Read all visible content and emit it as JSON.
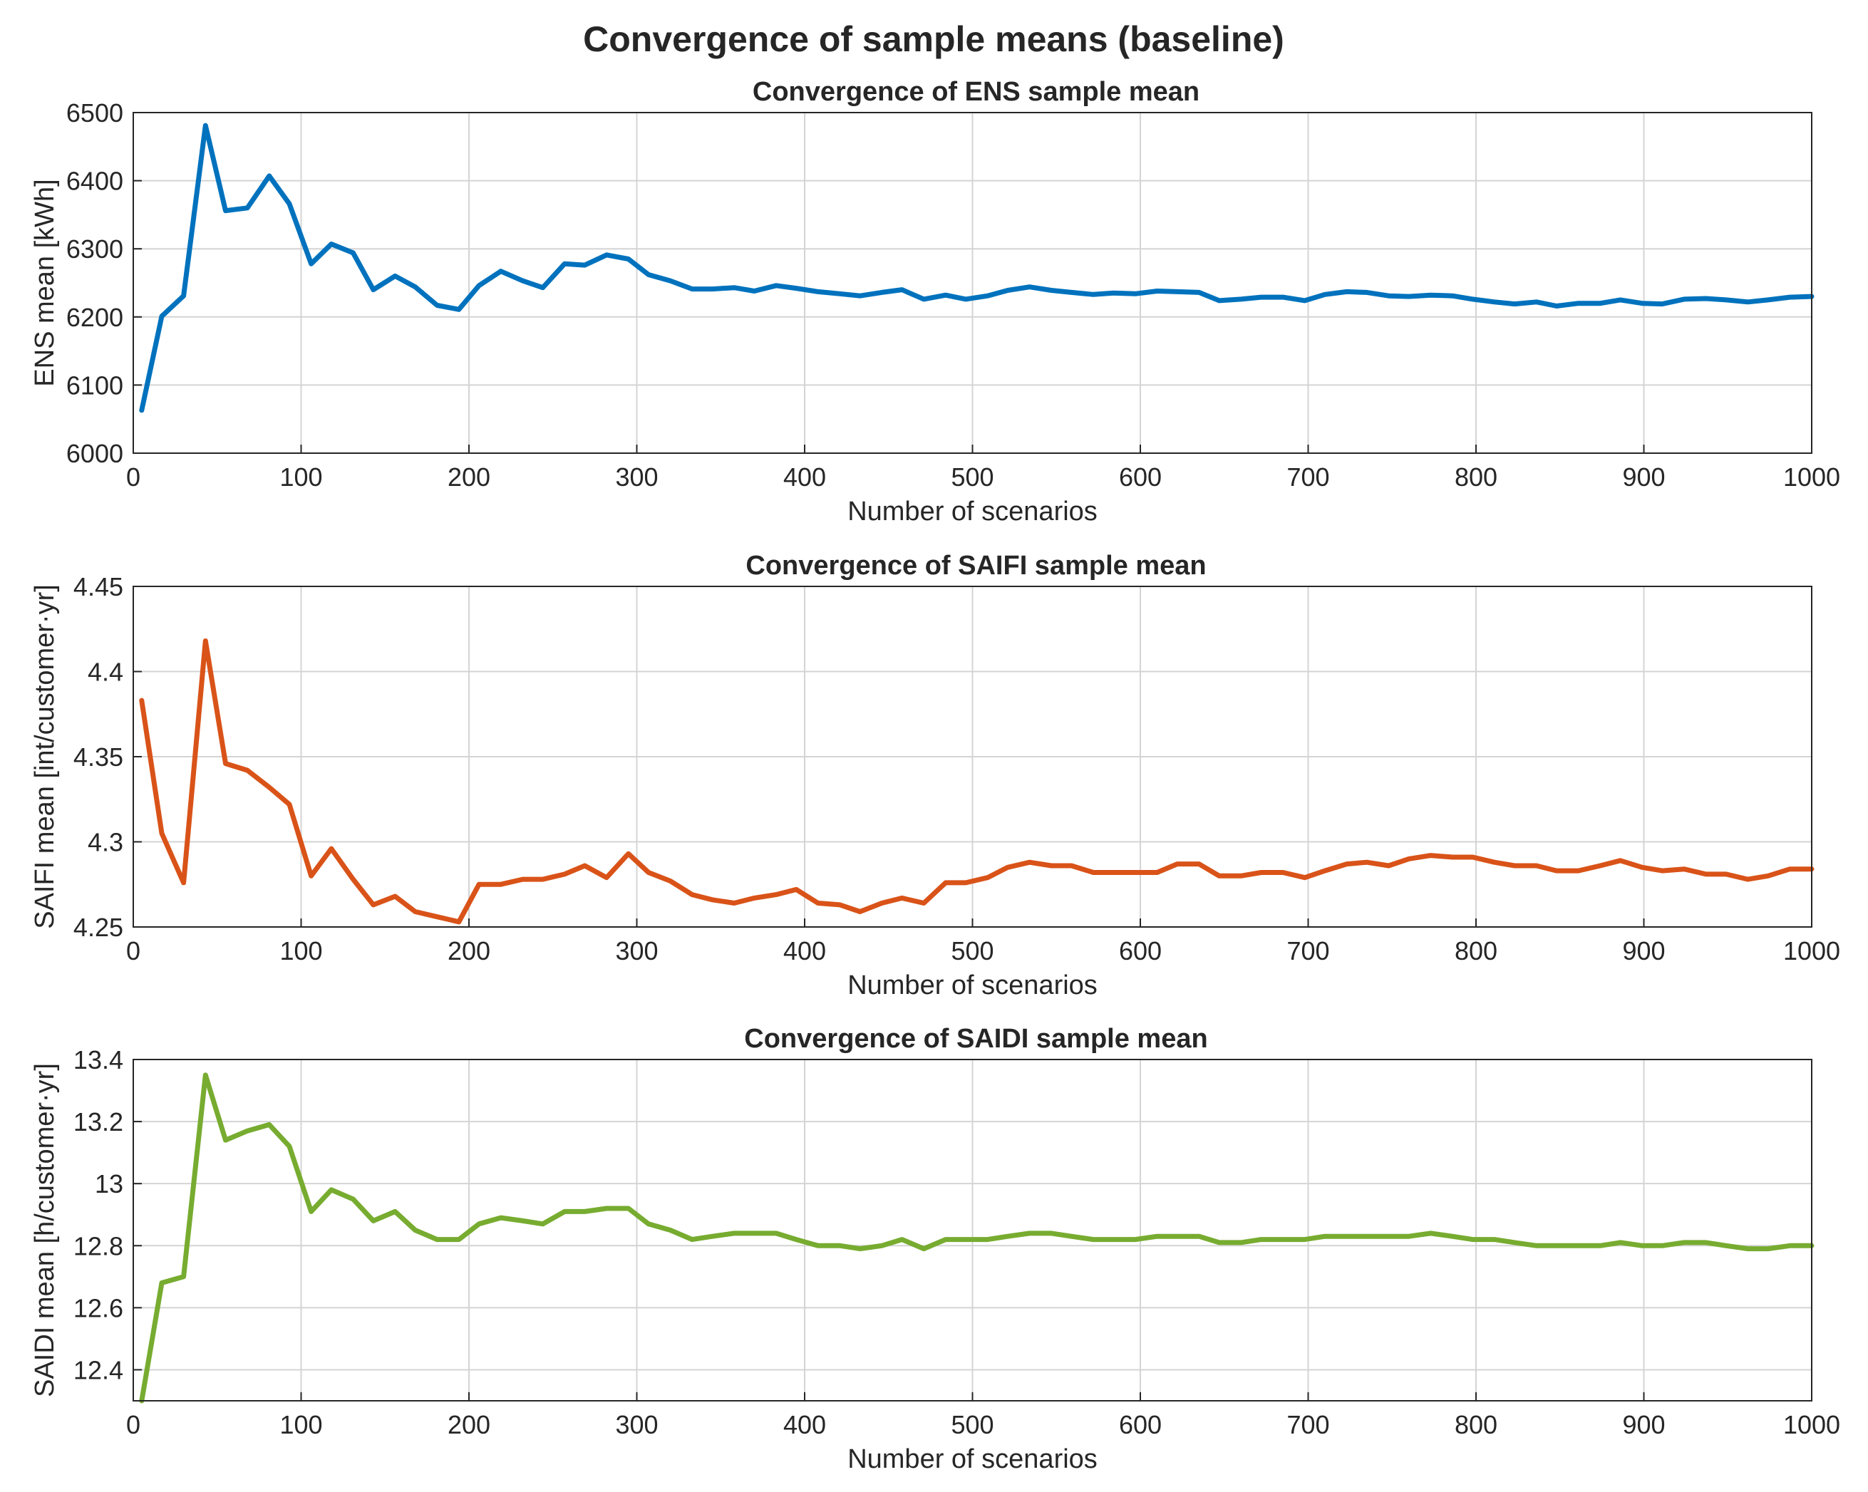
{
  "figure": {
    "title": "Convergence of sample means (baseline)"
  },
  "chart_data": [
    {
      "type": "line",
      "title": "Convergence of ENS sample mean",
      "xlabel": "Number of scenarios",
      "ylabel": "ENS mean [kWh]",
      "xlim": [
        0,
        1000
      ],
      "ylim": [
        6000,
        6500
      ],
      "xticks": [
        0,
        100,
        200,
        300,
        400,
        500,
        600,
        700,
        800,
        900,
        1000
      ],
      "xtick_labels": [
        "0",
        "100",
        "200",
        "300",
        "400",
        "500",
        "600",
        "700",
        "800",
        "900",
        "1000"
      ],
      "yticks": [
        6000,
        6100,
        6200,
        6300,
        6400,
        6500
      ],
      "ytick_labels": [
        "6000",
        "6100",
        "6200",
        "6300",
        "6400",
        "6500"
      ],
      "grid": true,
      "color": "#0072BD",
      "series": [
        {
          "name": "ENS",
          "x": [
            5,
            17,
            30,
            43,
            55,
            68,
            81,
            93,
            106,
            118,
            131,
            143,
            156,
            168,
            181,
            194,
            206,
            219,
            232,
            244,
            257,
            269,
            282,
            295,
            307,
            320,
            333,
            345,
            358,
            370,
            383,
            395,
            408,
            421,
            433,
            446,
            458,
            471,
            484,
            496,
            509,
            521,
            534,
            547,
            559,
            572,
            584,
            597,
            610,
            622,
            635,
            647,
            660,
            672,
            685,
            698,
            710,
            723,
            735,
            748,
            760,
            773,
            786,
            798,
            811,
            823,
            836,
            848,
            861,
            874,
            886,
            899,
            911,
            924,
            937,
            949,
            962,
            974,
            987,
            1000
          ],
          "y": [
            6063,
            6201,
            6231,
            6481,
            6356,
            6360,
            6407,
            6366,
            6278,
            6307,
            6294,
            6240,
            6260,
            6244,
            6217,
            6211,
            6246,
            6267,
            6253,
            6243,
            6278,
            6276,
            6291,
            6285,
            6262,
            6253,
            6241,
            6241,
            6243,
            6238,
            6246,
            6242,
            6237,
            6234,
            6231,
            6236,
            6240,
            6226,
            6232,
            6226,
            6231,
            6239,
            6244,
            6239,
            6236,
            6233,
            6235,
            6234,
            6238,
            6237,
            6236,
            6224,
            6226,
            6229,
            6229,
            6224,
            6233,
            6237,
            6236,
            6231,
            6230,
            6232,
            6231,
            6226,
            6222,
            6219,
            6222,
            6216,
            6220,
            6220,
            6225,
            6220,
            6219,
            6226,
            6227,
            6225,
            6222,
            6225,
            6229,
            6230
          ]
        }
      ]
    },
    {
      "type": "line",
      "title": "Convergence of SAIFI sample mean",
      "xlabel": "Number of scenarios",
      "ylabel": "SAIFI mean [int/customer·yr]",
      "xlim": [
        0,
        1000
      ],
      "ylim": [
        4.25,
        4.45
      ],
      "xticks": [
        0,
        100,
        200,
        300,
        400,
        500,
        600,
        700,
        800,
        900,
        1000
      ],
      "xtick_labels": [
        "0",
        "100",
        "200",
        "300",
        "400",
        "500",
        "600",
        "700",
        "800",
        "900",
        "1000"
      ],
      "yticks": [
        4.25,
        4.3,
        4.35,
        4.4,
        4.45
      ],
      "ytick_labels": [
        "4.25",
        "4.3",
        "4.35",
        "4.4",
        "4.45"
      ],
      "grid": true,
      "color": "#D95319",
      "series": [
        {
          "name": "SAIFI",
          "x": [
            5,
            17,
            30,
            43,
            55,
            68,
            81,
            93,
            106,
            118,
            131,
            143,
            156,
            168,
            181,
            194,
            206,
            219,
            232,
            244,
            257,
            269,
            282,
            295,
            307,
            320,
            333,
            345,
            358,
            370,
            383,
            395,
            408,
            421,
            433,
            446,
            458,
            471,
            484,
            496,
            509,
            521,
            534,
            547,
            559,
            572,
            584,
            597,
            610,
            622,
            635,
            647,
            660,
            672,
            685,
            698,
            710,
            723,
            735,
            748,
            760,
            773,
            786,
            798,
            811,
            823,
            836,
            848,
            861,
            874,
            886,
            899,
            911,
            924,
            937,
            949,
            962,
            974,
            987,
            1000
          ],
          "y": [
            4.383,
            4.305,
            4.276,
            4.418,
            4.346,
            4.342,
            4.332,
            4.322,
            4.28,
            4.296,
            4.278,
            4.263,
            4.268,
            4.259,
            4.256,
            4.253,
            4.275,
            4.275,
            4.278,
            4.278,
            4.281,
            4.286,
            4.279,
            4.293,
            4.282,
            4.277,
            4.269,
            4.266,
            4.264,
            4.267,
            4.269,
            4.272,
            4.264,
            4.263,
            4.259,
            4.264,
            4.267,
            4.264,
            4.276,
            4.276,
            4.279,
            4.285,
            4.288,
            4.286,
            4.286,
            4.282,
            4.282,
            4.282,
            4.282,
            4.287,
            4.287,
            4.28,
            4.28,
            4.282,
            4.282,
            4.279,
            4.283,
            4.287,
            4.288,
            4.286,
            4.29,
            4.292,
            4.291,
            4.291,
            4.288,
            4.286,
            4.286,
            4.283,
            4.283,
            4.286,
            4.289,
            4.285,
            4.283,
            4.284,
            4.281,
            4.281,
            4.278,
            4.28,
            4.284,
            4.284
          ]
        }
      ]
    },
    {
      "type": "line",
      "title": "Convergence of SAIDI sample mean",
      "xlabel": "Number of scenarios",
      "ylabel": "SAIDI mean [h/customer·yr]",
      "xlim": [
        0,
        1000
      ],
      "ylim": [
        12.3,
        13.4
      ],
      "xticks": [
        0,
        100,
        200,
        300,
        400,
        500,
        600,
        700,
        800,
        900,
        1000
      ],
      "xtick_labels": [
        "0",
        "100",
        "200",
        "300",
        "400",
        "500",
        "600",
        "700",
        "800",
        "900",
        "1000"
      ],
      "yticks": [
        12.4,
        12.6,
        12.8,
        13,
        13.2,
        13.4
      ],
      "ytick_labels": [
        "12.4",
        "12.6",
        "12.8",
        "13",
        "13.2",
        "13.4"
      ],
      "grid": true,
      "color": "#77AC30",
      "series": [
        {
          "name": "SAIDI",
          "x": [
            5,
            17,
            30,
            43,
            55,
            68,
            81,
            93,
            106,
            118,
            131,
            143,
            156,
            168,
            181,
            194,
            206,
            219,
            232,
            244,
            257,
            269,
            282,
            295,
            307,
            320,
            333,
            345,
            358,
            370,
            383,
            395,
            408,
            421,
            433,
            446,
            458,
            471,
            484,
            496,
            509,
            521,
            534,
            547,
            559,
            572,
            584,
            597,
            610,
            622,
            635,
            647,
            660,
            672,
            685,
            698,
            710,
            723,
            735,
            748,
            760,
            773,
            786,
            798,
            811,
            823,
            836,
            848,
            861,
            874,
            886,
            899,
            911,
            924,
            937,
            949,
            962,
            974,
            987,
            1000
          ],
          "y": [
            12.3,
            12.68,
            12.7,
            13.35,
            13.14,
            13.17,
            13.19,
            13.12,
            12.91,
            12.98,
            12.95,
            12.88,
            12.91,
            12.85,
            12.82,
            12.82,
            12.87,
            12.89,
            12.88,
            12.87,
            12.91,
            12.91,
            12.92,
            12.92,
            12.87,
            12.85,
            12.82,
            12.83,
            12.84,
            12.84,
            12.84,
            12.82,
            12.8,
            12.8,
            12.79,
            12.8,
            12.82,
            12.79,
            12.82,
            12.82,
            12.82,
            12.83,
            12.84,
            12.84,
            12.83,
            12.82,
            12.82,
            12.82,
            12.83,
            12.83,
            12.83,
            12.81,
            12.81,
            12.82,
            12.82,
            12.82,
            12.83,
            12.83,
            12.83,
            12.83,
            12.83,
            12.84,
            12.83,
            12.82,
            12.82,
            12.81,
            12.8,
            12.8,
            12.8,
            12.8,
            12.81,
            12.8,
            12.8,
            12.81,
            12.81,
            12.8,
            12.79,
            12.79,
            12.8,
            12.8
          ]
        }
      ]
    }
  ]
}
